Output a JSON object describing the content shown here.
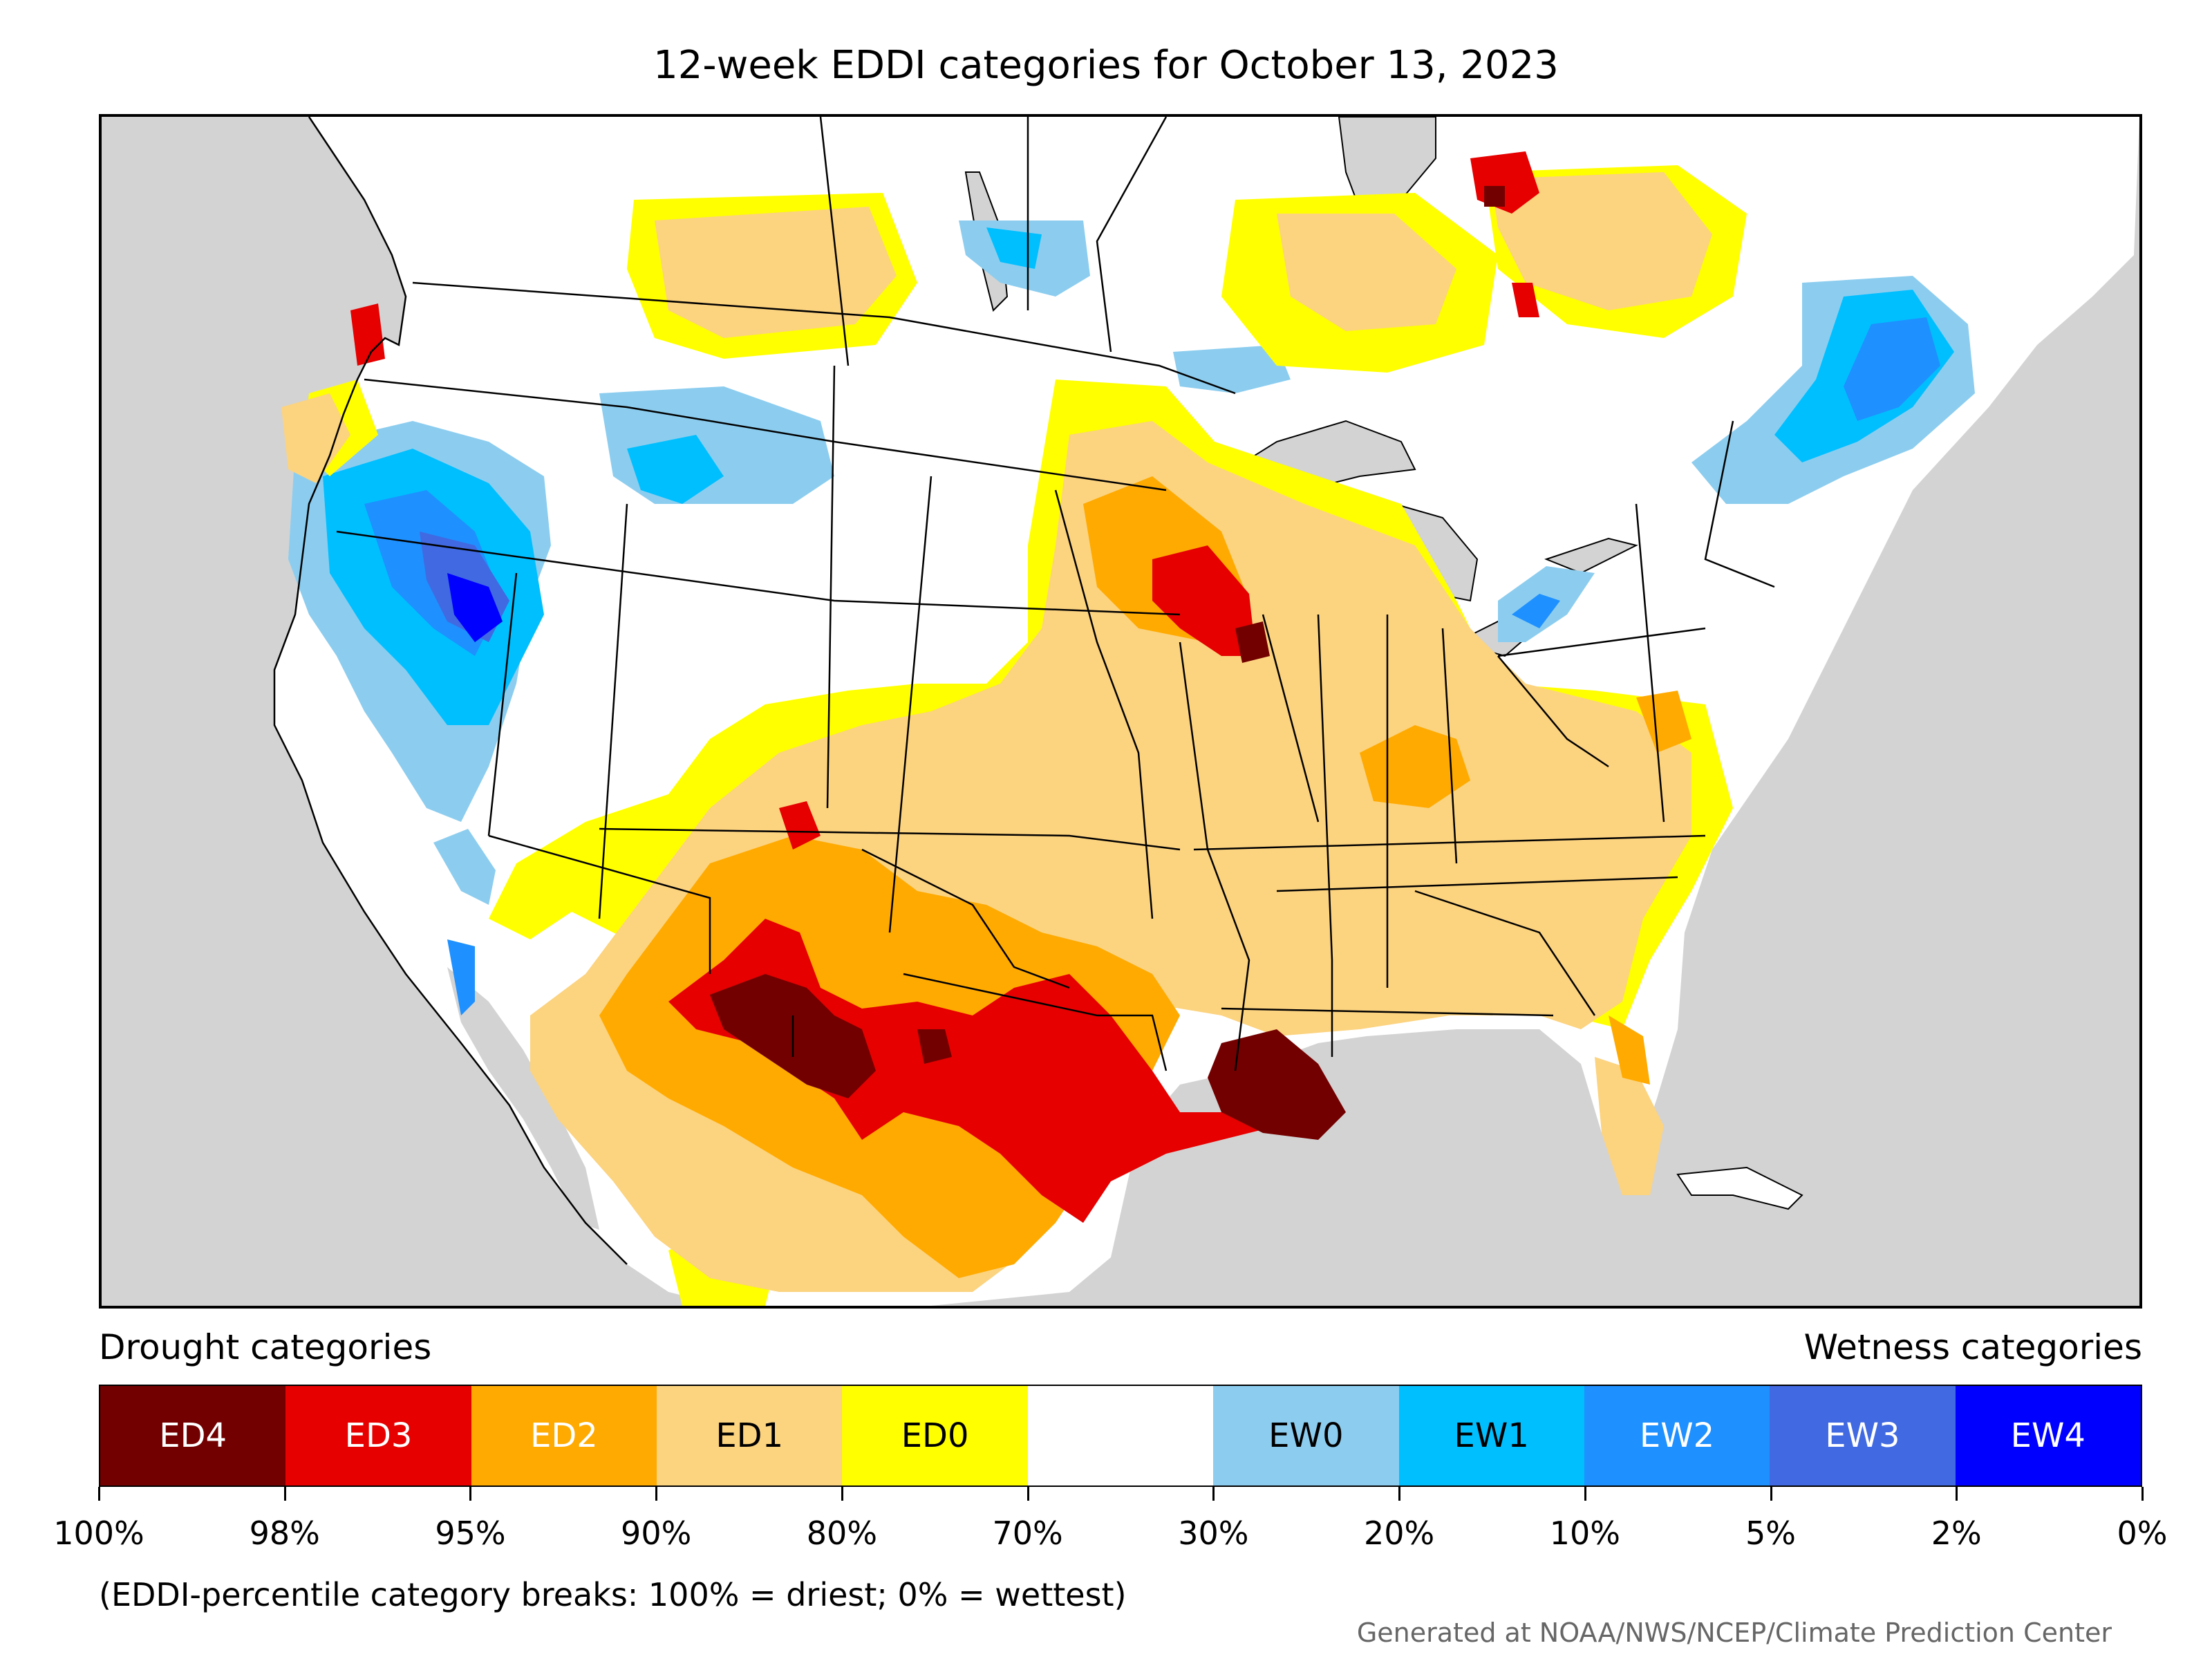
{
  "title": "12-week EDDI categories for October 13, 2023",
  "legend": {
    "drought_caption": "Drought categories",
    "wetness_caption": "Wetness categories",
    "categories": [
      {
        "label": "ED4",
        "color": "#730000",
        "text_color": "#ffffff"
      },
      {
        "label": "ED3",
        "color": "#e60000",
        "text_color": "#ffffff"
      },
      {
        "label": "ED2",
        "color": "#ffaa00",
        "text_color": "#ffffff"
      },
      {
        "label": "ED1",
        "color": "#fcd37f",
        "text_color": "#000000"
      },
      {
        "label": "ED0",
        "color": "#ffff00",
        "text_color": "#000000"
      },
      {
        "label": "",
        "color": "#ffffff",
        "text_color": "#000000"
      },
      {
        "label": "EW0",
        "color": "#8ccdef",
        "text_color": "#000000"
      },
      {
        "label": "EW1",
        "color": "#00bfff",
        "text_color": "#000000"
      },
      {
        "label": "EW2",
        "color": "#1e90ff",
        "text_color": "#ffffff"
      },
      {
        "label": "EW3",
        "color": "#4169e1",
        "text_color": "#ffffff"
      },
      {
        "label": "EW4",
        "color": "#0000ff",
        "text_color": "#ffffff"
      }
    ],
    "breaks": [
      "100%",
      "98%",
      "95%",
      "90%",
      "80%",
      "70%",
      "30%",
      "20%",
      "10%",
      "5%",
      "2%",
      "0%"
    ]
  },
  "note": "(EDDI-percentile category breaks: 100% = driest; 0% = wettest)",
  "credit": "Generated at NOAA/NWS/NCEP/Climate Prediction Center",
  "colors": {
    "ocean": "#d3d3d3",
    "land": "#ffffff"
  }
}
